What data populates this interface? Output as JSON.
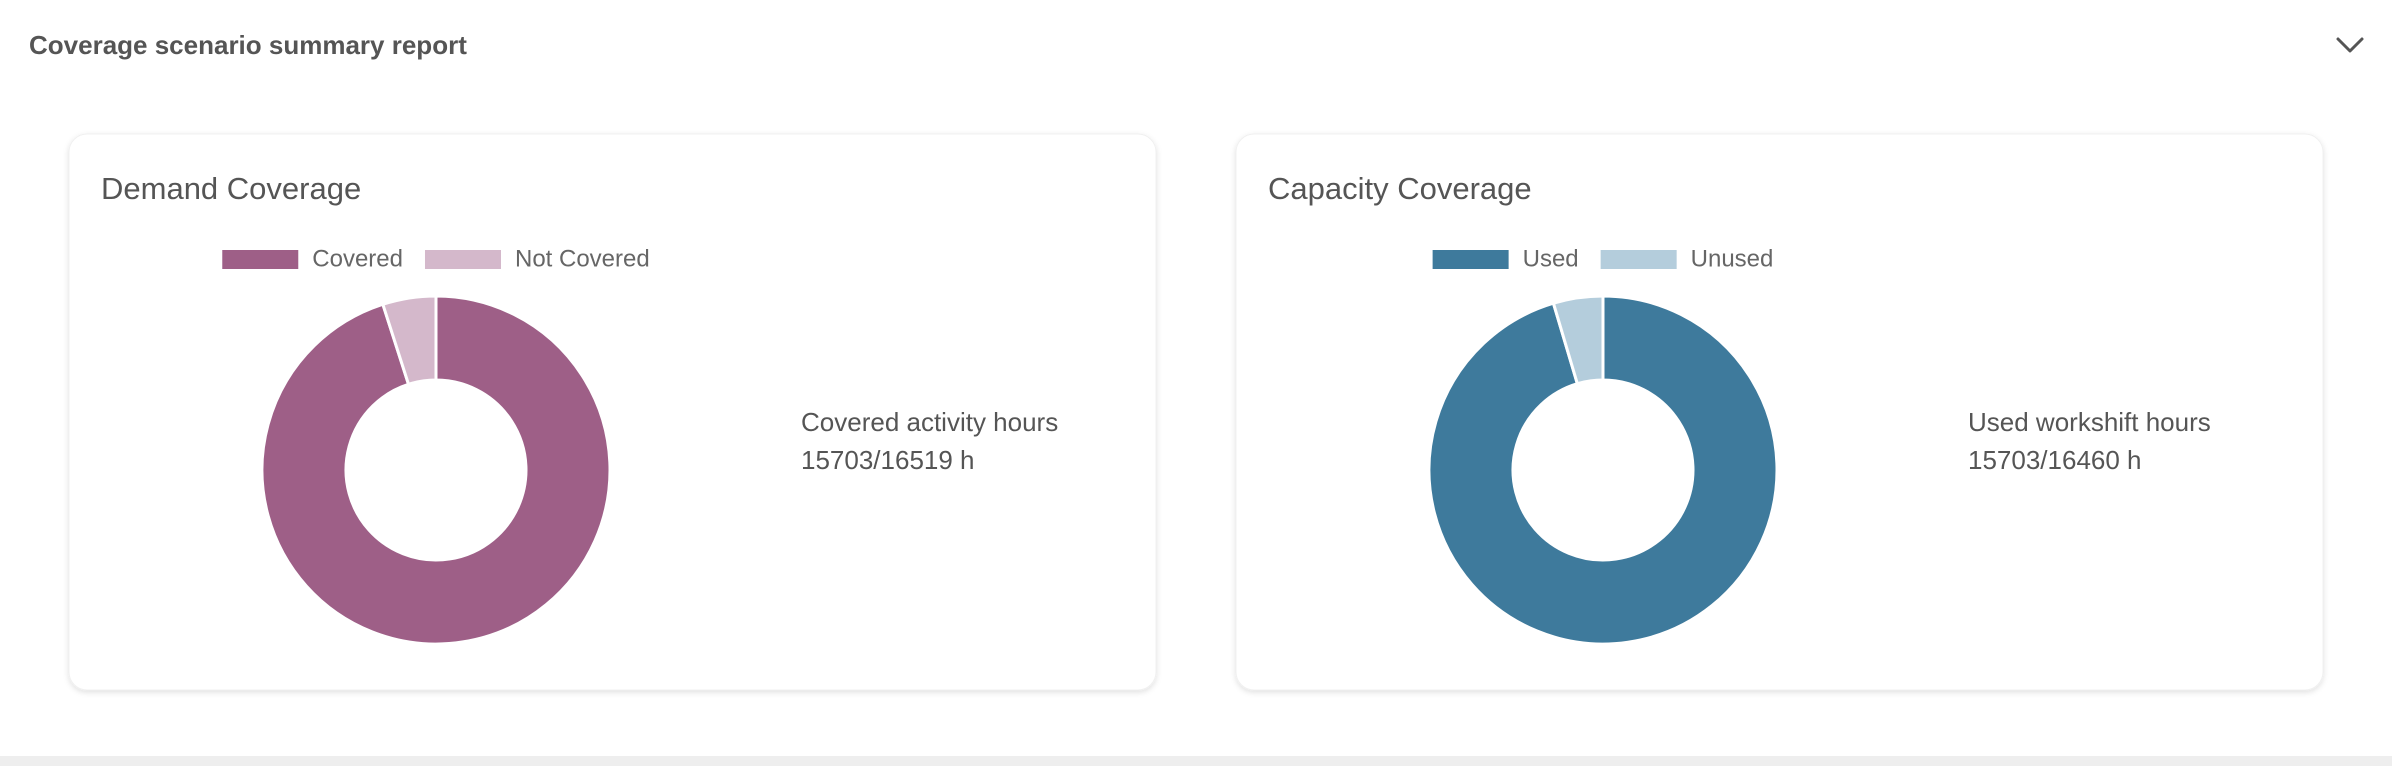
{
  "header": {
    "title": "Coverage scenario summary report"
  },
  "chart_data": [
    {
      "type": "doughnut",
      "title": "Demand Coverage",
      "categories": [
        "Covered",
        "Not Covered"
      ],
      "values": [
        15703,
        816
      ],
      "colors": [
        "#9e5f87",
        "#d4b8cb"
      ],
      "summary_label": "Covered activity hours",
      "summary_value": "15703/16519 h"
    },
    {
      "type": "doughnut",
      "title": "Capacity Coverage",
      "categories": [
        "Used",
        "Unused"
      ],
      "values": [
        15703,
        757
      ],
      "colors": [
        "#3e7a9c",
        "#b4cddc"
      ],
      "summary_label": "Used workshift hours",
      "summary_value": "15703/16460 h"
    }
  ]
}
